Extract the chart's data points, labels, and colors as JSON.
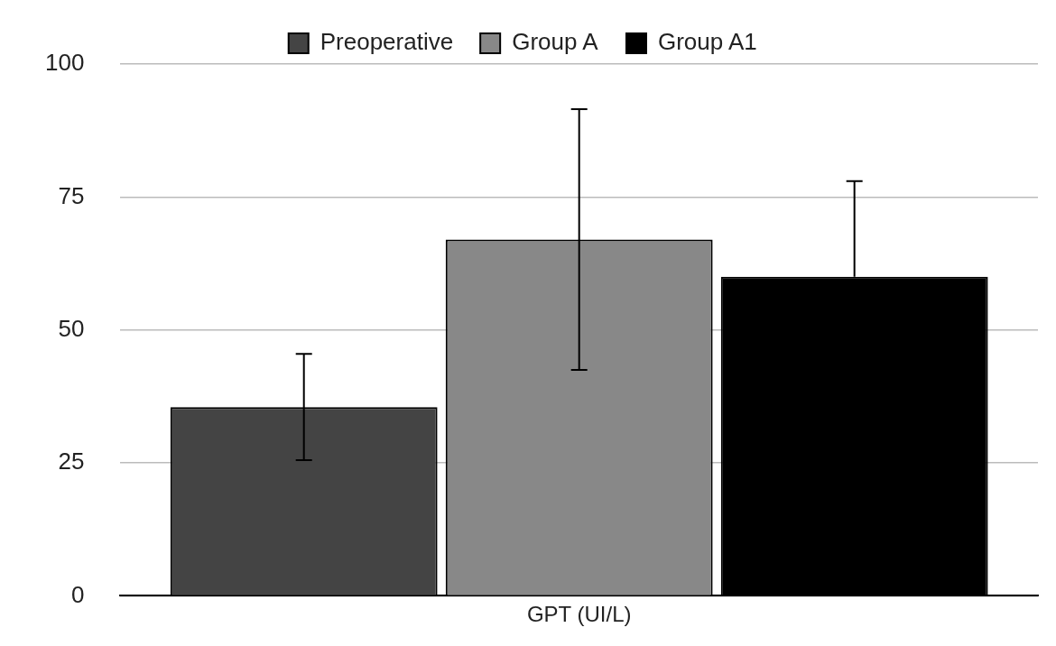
{
  "chart_data": {
    "type": "bar",
    "categories": [
      "GPT (UI/L)"
    ],
    "series": [
      {
        "name": "Preoperative",
        "color": "#444444",
        "values": [
          35.5
        ],
        "errors": [
          10
        ]
      },
      {
        "name": "Group A",
        "color": "#888888",
        "values": [
          67
        ],
        "errors": [
          24.5
        ]
      },
      {
        "name": "Group A1",
        "color": "#000000",
        "values": [
          60
        ],
        "errors": [
          [
            60,
            78
          ]
        ]
      }
    ],
    "ylim": [
      0,
      100
    ],
    "yticks": [
      0,
      25,
      50,
      75,
      100
    ],
    "grid": "y",
    "legend": "top"
  }
}
